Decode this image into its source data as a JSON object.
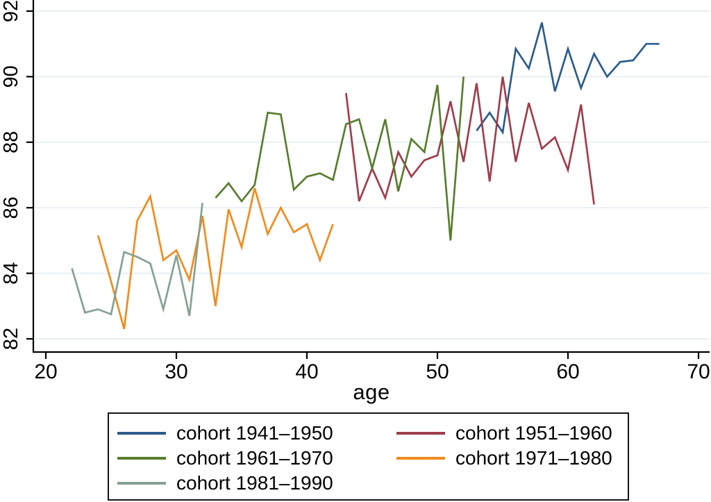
{
  "figure": {
    "background": "#ffffff",
    "axis_color": "#000000",
    "grid_color": "#e4eef2"
  },
  "chart_data": {
    "type": "line",
    "title": "",
    "xlabel": "age",
    "ylabel": "",
    "x_ticks": [
      20,
      30,
      40,
      50,
      60,
      70
    ],
    "y_ticks": [
      82,
      84,
      86,
      88,
      90,
      92
    ],
    "xlim": [
      19.0,
      70.9
    ],
    "ylim": [
      81.6,
      92.35
    ],
    "grid": "horizontal",
    "legend_position": "bottom",
    "y_tick_label_rotation": 90,
    "series": [
      {
        "name": "cohort 1941–1950",
        "color": "#2b5c8a",
        "ages": [
          53,
          54,
          55,
          56,
          57,
          58,
          59,
          60,
          61,
          62,
          63,
          64,
          65,
          66,
          67
        ],
        "values": [
          88.35,
          88.9,
          88.3,
          90.85,
          90.25,
          91.65,
          89.55,
          90.85,
          89.65,
          90.7,
          90.0,
          90.45,
          90.5,
          91.0,
          91.0
        ]
      },
      {
        "name": "cohort 1951–1960",
        "color": "#9e3d4d",
        "ages": [
          43,
          44,
          45,
          46,
          47,
          48,
          49,
          50,
          51,
          52,
          53,
          54,
          55,
          56,
          57,
          58,
          59,
          60,
          61,
          62
        ],
        "values": [
          89.5,
          86.2,
          87.2,
          86.3,
          87.7,
          86.95,
          87.45,
          87.6,
          89.25,
          87.4,
          89.8,
          86.8,
          90.0,
          87.4,
          89.2,
          87.8,
          88.15,
          87.15,
          89.15,
          86.1
        ]
      },
      {
        "name": "cohort 1961–1970",
        "color": "#587c2e",
        "ages": [
          33,
          34,
          35,
          36,
          37,
          38,
          39,
          40,
          41,
          42,
          43,
          44,
          45,
          46,
          47,
          48,
          49,
          50,
          51,
          52
        ],
        "values": [
          86.3,
          86.75,
          86.2,
          86.7,
          88.9,
          88.85,
          86.55,
          86.95,
          87.05,
          86.85,
          88.55,
          88.7,
          87.2,
          88.7,
          86.5,
          88.1,
          87.7,
          89.75,
          85.0,
          90.0
        ]
      },
      {
        "name": "cohort 1971–1980",
        "color": "#f08b1d",
        "ages": [
          24,
          25,
          26,
          27,
          28,
          29,
          30,
          31,
          32,
          33,
          34,
          35,
          36,
          37,
          38,
          39,
          40,
          41,
          42
        ],
        "values": [
          85.15,
          83.75,
          82.3,
          85.6,
          86.35,
          84.4,
          84.7,
          83.8,
          85.75,
          83.0,
          85.95,
          84.8,
          86.6,
          85.2,
          86.0,
          85.25,
          85.5,
          84.4,
          85.5
        ]
      },
      {
        "name": "cohort 1981–1990",
        "color": "#85a192",
        "ages": [
          22,
          23,
          24,
          25,
          26,
          27,
          28,
          29,
          30,
          31,
          32
        ],
        "values": [
          84.15,
          82.8,
          82.9,
          82.75,
          84.65,
          84.5,
          84.3,
          82.9,
          84.55,
          82.7,
          86.15
        ]
      }
    ]
  }
}
